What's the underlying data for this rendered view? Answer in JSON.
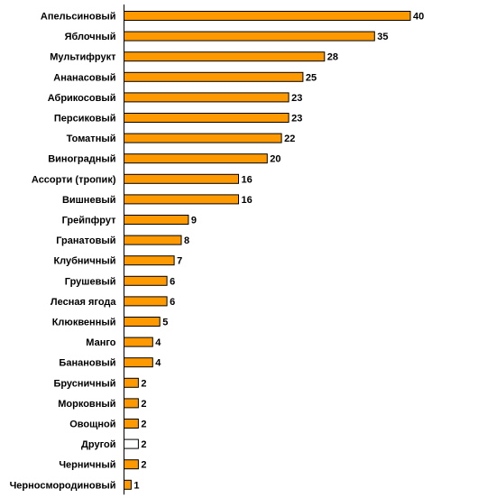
{
  "chart_data": {
    "type": "bar",
    "orientation": "horizontal",
    "title": "",
    "xlabel": "",
    "ylabel": "",
    "categories": [
      "Апельсиновый",
      "Яблочный",
      "Мультифрукт",
      "Ананасовый",
      "Абрикосовый",
      "Персиковый",
      "Томатный",
      "Виноградный",
      "Ассорти (тропик)",
      "Вишневый",
      "Грейпфрут",
      "Гранатовый",
      "Клубничный",
      "Грушевый",
      "Лесная ягода",
      "Клюквенный",
      "Манго",
      "Банановый",
      "Брусничный",
      "Морковный",
      "Овощной",
      "Другой",
      "Черничный",
      "Черносмородиновый"
    ],
    "values": [
      40,
      35,
      28,
      25,
      23,
      23,
      22,
      20,
      16,
      16,
      9,
      8,
      7,
      6,
      6,
      5,
      4,
      4,
      2,
      2,
      2,
      2,
      2,
      1
    ],
    "value_labels": [
      "40",
      "35",
      "28",
      "25",
      "23",
      "23",
      "22",
      "20",
      "16",
      "16",
      "9",
      "8",
      "7",
      "6",
      "6",
      "5",
      "4",
      "4",
      "2",
      "2",
      "2",
      "2",
      "2",
      "1"
    ],
    "bar_fill": [
      "#ff9900",
      "#ff9900",
      "#ff9900",
      "#ff9900",
      "#ff9900",
      "#ff9900",
      "#ff9900",
      "#ff9900",
      "#ff9900",
      "#ff9900",
      "#ff9900",
      "#ff9900",
      "#ff9900",
      "#ff9900",
      "#ff9900",
      "#ff9900",
      "#ff9900",
      "#ff9900",
      "#ff9900",
      "#ff9900",
      "#ff9900",
      "#ffffff",
      "#ff9900",
      "#ff9900"
    ],
    "xlim": [
      0,
      40
    ],
    "grid": false,
    "legend": "none",
    "colors": {
      "bar": "#ff9900",
      "highlight_bar": "#ffffff",
      "outline": "#000000",
      "axis": "#000000"
    }
  }
}
